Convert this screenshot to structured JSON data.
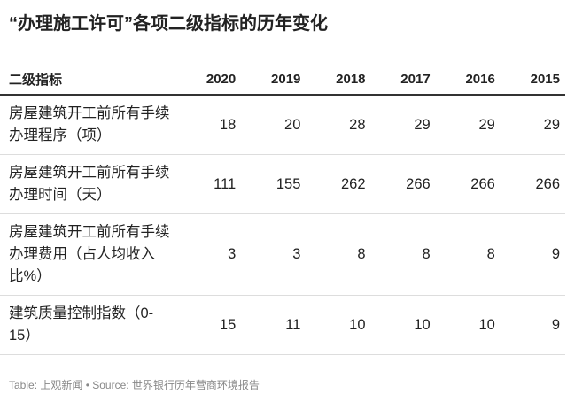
{
  "title": "“办理施工许可”各项二级指标的历年变化",
  "table": {
    "header": [
      "二级指标",
      "2020",
      "2019",
      "2018",
      "2017",
      "2016",
      "2015"
    ],
    "rows": [
      [
        "房屋建筑开工前所有手续办理程序（项）",
        18,
        20,
        28,
        29,
        29,
        29
      ],
      [
        "房屋建筑开工前所有手续办理时间（天）",
        111,
        155,
        262,
        266,
        266,
        266
      ],
      [
        "房屋建筑开工前所有手续办理费用（占人均收入比%）",
        3,
        3,
        8,
        8,
        8,
        9
      ],
      [
        "建筑质量控制指数（0-15）",
        15,
        11,
        10,
        10,
        10,
        9
      ]
    ]
  },
  "footer": "Table: 上观新闻 • Source: 世界银行历年营商环境报告"
}
